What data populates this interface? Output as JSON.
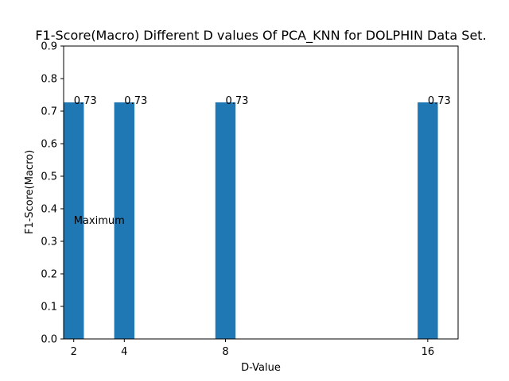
{
  "chart_data": {
    "type": "bar",
    "title": "F1-Score(Macro) Different D values Of PCA_KNN for DOLPHIN Data Set.",
    "xlabel": "D-Value",
    "ylabel": "F1-Score(Macro)",
    "x": [
      2,
      4,
      8,
      16
    ],
    "x_tick_labels": [
      "2",
      "4",
      "8",
      "16"
    ],
    "values": [
      0.727,
      0.727,
      0.727,
      0.727
    ],
    "data_labels": [
      "0.73",
      "0.73",
      "0.73",
      "0.73"
    ],
    "xlim": [
      1.6,
      17.2
    ],
    "ylim": [
      0,
      0.9
    ],
    "y_ticks": [
      0.0,
      0.1,
      0.2,
      0.3,
      0.4,
      0.5,
      0.6,
      0.7,
      0.8,
      0.9
    ],
    "y_tick_labels": [
      "0.0",
      "0.1",
      "0.2",
      "0.3",
      "0.4",
      "0.5",
      "0.6",
      "0.7",
      "0.8",
      "0.9"
    ],
    "bar_width": 0.8,
    "bar_color": "#1f77b4",
    "annotation": {
      "text": "Maximum",
      "x": 2,
      "y": 0.365
    },
    "grid": false,
    "legend": "none"
  }
}
